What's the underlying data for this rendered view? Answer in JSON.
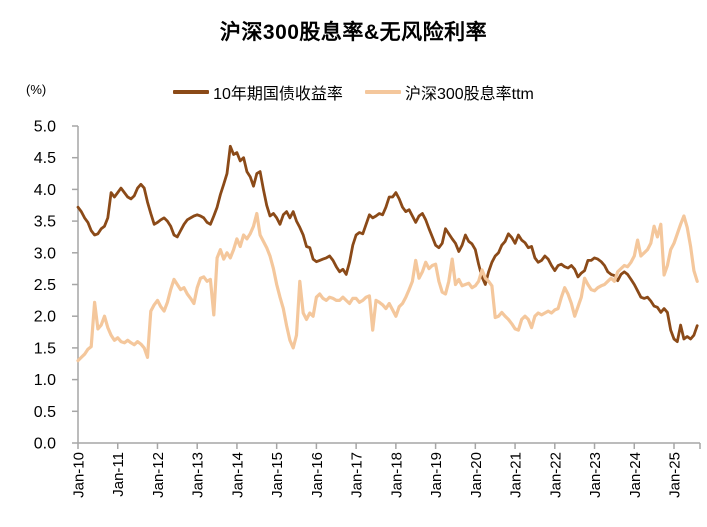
{
  "chart_data": {
    "type": "line",
    "title": "沪深300股息率&无风险利率",
    "ylabel": "(%)",
    "xlabel": "",
    "ylim": [
      0.0,
      5.0
    ],
    "y_tick_labels": [
      "5.0",
      "4.5",
      "4.0",
      "3.5",
      "3.0",
      "2.5",
      "2.0",
      "1.5",
      "1.0",
      "0.5",
      "0.0"
    ],
    "x_tick_labels": [
      "Jan-10",
      "Jan-11",
      "Jan-12",
      "Jan-13",
      "Jan-14",
      "Jan-15",
      "Jan-16",
      "Jan-17",
      "Jan-18",
      "Jan-19",
      "Jan-20",
      "Jan-21",
      "Jan-22",
      "Jan-23",
      "Jan-24",
      "Jan-25"
    ],
    "x_start": "2010-01",
    "x_end": "2025-08",
    "frequency": "monthly",
    "grid": false,
    "legend_position": "top",
    "axis_color": "#A6A6A6",
    "series": [
      {
        "name": "10年期国债收益率",
        "color": "#8B4A18",
        "values": [
          3.72,
          3.65,
          3.55,
          3.48,
          3.35,
          3.28,
          3.3,
          3.38,
          3.42,
          3.55,
          3.95,
          3.88,
          3.95,
          4.02,
          3.95,
          3.88,
          3.85,
          3.9,
          4.02,
          4.08,
          4.02,
          3.8,
          3.62,
          3.45,
          3.48,
          3.52,
          3.55,
          3.5,
          3.42,
          3.28,
          3.25,
          3.35,
          3.45,
          3.52,
          3.55,
          3.58,
          3.6,
          3.58,
          3.55,
          3.48,
          3.45,
          3.58,
          3.72,
          3.92,
          4.08,
          4.25,
          4.68,
          4.55,
          4.58,
          4.45,
          4.5,
          4.28,
          4.2,
          4.05,
          4.25,
          4.28,
          4.0,
          3.75,
          3.58,
          3.62,
          3.55,
          3.45,
          3.6,
          3.65,
          3.55,
          3.65,
          3.5,
          3.4,
          3.28,
          3.1,
          3.08,
          2.9,
          2.86,
          2.88,
          2.9,
          2.92,
          2.95,
          2.88,
          2.78,
          2.7,
          2.74,
          2.66,
          2.85,
          3.12,
          3.28,
          3.32,
          3.3,
          3.45,
          3.6,
          3.55,
          3.58,
          3.62,
          3.6,
          3.72,
          3.88,
          3.88,
          3.95,
          3.85,
          3.72,
          3.65,
          3.68,
          3.58,
          3.48,
          3.58,
          3.62,
          3.52,
          3.38,
          3.25,
          3.12,
          3.08,
          3.15,
          3.38,
          3.3,
          3.22,
          3.15,
          3.02,
          3.12,
          3.28,
          3.18,
          3.14,
          3.05,
          2.82,
          2.62,
          2.5,
          2.7,
          2.85,
          2.95,
          3.0,
          3.12,
          3.18,
          3.3,
          3.24,
          3.15,
          3.28,
          3.2,
          3.16,
          3.08,
          3.1,
          2.92,
          2.85,
          2.88,
          2.95,
          2.9,
          2.8,
          2.72,
          2.8,
          2.82,
          2.78,
          2.76,
          2.8,
          2.74,
          2.62,
          2.68,
          2.72,
          2.88,
          2.88,
          2.92,
          2.9,
          2.86,
          2.8,
          2.7,
          2.66,
          2.64,
          2.56,
          2.66,
          2.7,
          2.66,
          2.58,
          2.5,
          2.4,
          2.3,
          2.28,
          2.3,
          2.24,
          2.16,
          2.14,
          2.06,
          2.12,
          2.06,
          1.78,
          1.64,
          1.6,
          1.86,
          1.64,
          1.68,
          1.64,
          1.7,
          1.85
        ]
      },
      {
        "name": "沪深300股息率ttm",
        "color": "#F4C79C",
        "values": [
          1.3,
          1.35,
          1.4,
          1.48,
          1.52,
          2.22,
          1.8,
          1.86,
          2.0,
          1.82,
          1.7,
          1.62,
          1.66,
          1.6,
          1.58,
          1.62,
          1.58,
          1.55,
          1.6,
          1.56,
          1.5,
          1.35,
          2.08,
          2.18,
          2.25,
          2.15,
          2.08,
          2.22,
          2.42,
          2.58,
          2.5,
          2.42,
          2.45,
          2.35,
          2.28,
          2.2,
          2.45,
          2.6,
          2.62,
          2.55,
          2.58,
          2.02,
          2.92,
          3.05,
          2.9,
          3.0,
          2.92,
          3.05,
          3.22,
          3.1,
          3.28,
          3.22,
          3.3,
          3.42,
          3.62,
          3.28,
          3.18,
          3.08,
          2.95,
          2.75,
          2.5,
          2.3,
          2.12,
          1.85,
          1.62,
          1.5,
          1.7,
          2.55,
          2.05,
          1.95,
          2.05,
          2.0,
          2.3,
          2.35,
          2.28,
          2.25,
          2.3,
          2.28,
          2.25,
          2.25,
          2.3,
          2.25,
          2.2,
          2.28,
          2.28,
          2.22,
          2.25,
          2.3,
          2.32,
          1.78,
          2.25,
          2.22,
          2.18,
          2.12,
          2.2,
          2.1,
          2.0,
          2.15,
          2.2,
          2.3,
          2.42,
          2.55,
          2.88,
          2.6,
          2.7,
          2.85,
          2.75,
          2.8,
          2.82,
          2.55,
          2.38,
          2.35,
          2.55,
          2.9,
          2.5,
          2.58,
          2.48,
          2.5,
          2.52,
          2.45,
          2.48,
          2.55,
          2.73,
          2.6,
          2.55,
          2.48,
          1.98,
          2.0,
          2.06,
          2.0,
          1.95,
          1.88,
          1.8,
          1.78,
          1.95,
          2.0,
          1.95,
          1.82,
          2.0,
          2.05,
          2.02,
          2.05,
          2.08,
          2.05,
          2.1,
          2.12,
          2.3,
          2.45,
          2.35,
          2.2,
          2.0,
          2.15,
          2.3,
          2.6,
          2.5,
          2.42,
          2.4,
          2.45,
          2.48,
          2.5,
          2.55,
          2.6,
          2.55,
          2.7,
          2.75,
          2.8,
          2.78,
          2.85,
          2.95,
          3.2,
          2.95,
          3.0,
          3.05,
          3.15,
          3.42,
          3.25,
          3.45,
          2.65,
          2.8,
          3.05,
          3.15,
          3.3,
          3.45,
          3.58,
          3.4,
          3.1,
          2.72,
          2.55
        ]
      }
    ]
  }
}
